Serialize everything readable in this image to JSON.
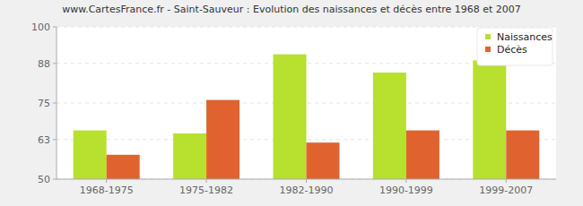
{
  "chart_data": {
    "type": "bar",
    "title": "www.CartesFrance.fr - Saint-Sauveur : Evolution des naissances et décès entre 1968 et 2007",
    "categories": [
      "1968-1975",
      "1975-1982",
      "1982-1990",
      "1990-1999",
      "1999-2007"
    ],
    "series": [
      {
        "name": "Naissances",
        "color": "#b8e02f",
        "values": [
          66,
          65,
          91,
          85,
          89
        ]
      },
      {
        "name": "Décès",
        "color": "#e0632f",
        "values": [
          58,
          76,
          62,
          66,
          66
        ]
      }
    ],
    "ylim": [
      50,
      100
    ],
    "yticks": [
      50,
      63,
      75,
      88,
      100
    ],
    "grid": true,
    "legend": "top-right"
  }
}
